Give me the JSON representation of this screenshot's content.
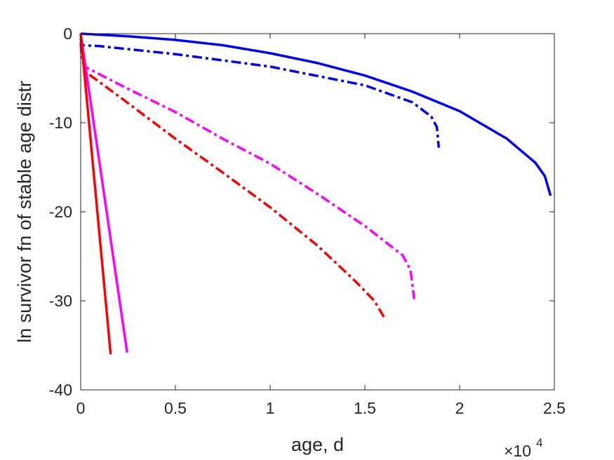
{
  "chart_data": {
    "type": "line",
    "xlabel": "age, d",
    "ylabel": "ln survivor fn of stable age distr",
    "x_multiplier_label": "×10",
    "x_multiplier_exponent": "4",
    "xlim": [
      0,
      25000
    ],
    "ylim": [
      -40,
      0
    ],
    "xticks": [
      0,
      5000,
      10000,
      15000,
      20000,
      25000
    ],
    "xtick_labels": [
      "0",
      "0.5",
      "1",
      "1.5",
      "2",
      "2.5"
    ],
    "yticks": [
      0,
      -10,
      -20,
      -30,
      -40
    ],
    "ytick_labels": [
      "0",
      "-10",
      "-20",
      "-30",
      "-40"
    ],
    "grid": false,
    "box": true,
    "series": [
      {
        "color": "#0000ff",
        "style": "solid",
        "x": [
          0,
          2500,
          5000,
          7500,
          10000,
          12500,
          15000,
          17500,
          20000,
          22500,
          24000,
          24500,
          24800
        ],
        "y": [
          0,
          -0.3,
          -0.7,
          -1.3,
          -2.2,
          -3.3,
          -4.7,
          -6.5,
          -8.7,
          -11.8,
          -14.5,
          -16.0,
          -18.2
        ]
      },
      {
        "color": "#0000ff",
        "style": "dashdot",
        "x": [
          0,
          80,
          1000,
          5000,
          10000,
          15000,
          17500,
          18500,
          18800,
          18900
        ],
        "y": [
          -0.5,
          -1.3,
          -1.4,
          -2.3,
          -3.7,
          -5.8,
          -7.7,
          -9.3,
          -10.5,
          -12.8
        ]
      },
      {
        "color": "#ff00ff",
        "style": "dashdot",
        "x": [
          0,
          50,
          300,
          2500,
          5000,
          7500,
          10000,
          12500,
          15000,
          17000,
          17400,
          17500,
          17600
        ],
        "y": [
          -1.0,
          -3.0,
          -3.8,
          -6.2,
          -8.8,
          -11.8,
          -14.6,
          -18.0,
          -21.6,
          -24.9,
          -26.5,
          -28.0,
          -29.8
        ]
      },
      {
        "color": "#ff0000",
        "style": "dashdot",
        "x": [
          0,
          200,
          2500,
          5000,
          7500,
          10000,
          12500,
          14500,
          15500,
          16000
        ],
        "y": [
          -0.5,
          -4.2,
          -7.8,
          -11.8,
          -15.6,
          -19.5,
          -23.8,
          -27.8,
          -30.0,
          -31.8
        ]
      },
      {
        "color": "#ff00ff",
        "style": "solid",
        "x": [
          0,
          2450
        ],
        "y": [
          0,
          -35.8
        ]
      },
      {
        "color": "#ff0000",
        "style": "solid",
        "x": [
          0,
          1580
        ],
        "y": [
          0,
          -36.0
        ]
      }
    ]
  }
}
